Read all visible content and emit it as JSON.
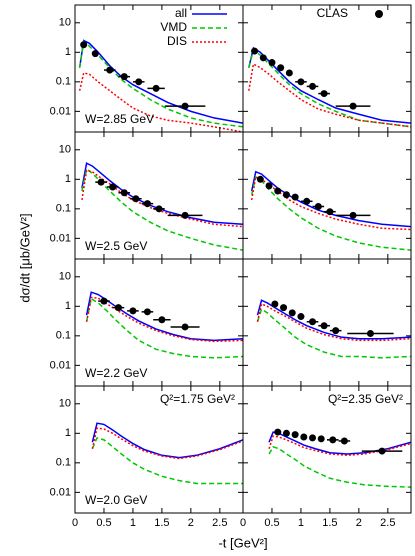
{
  "y_label": "dσ/dt [μb/GeV²]",
  "x_label": "-t [GeV²]",
  "chart_data": [
    {
      "type": "line",
      "annotations": [
        "W=2.85 GeV"
      ],
      "legend": "upper right",
      "xlim": [
        0,
        2.9
      ],
      "ylim": [
        0.002,
        40
      ],
      "log_y": true,
      "yticks": [
        0.01,
        0.1,
        1,
        10
      ],
      "x": [
        0.08,
        0.15,
        0.25,
        0.4,
        0.6,
        0.8,
        1.0,
        1.3,
        1.6,
        2.0,
        2.4,
        2.9
      ],
      "series": [
        {
          "name": "all",
          "color": "#0000ff",
          "style": "solid",
          "values": [
            0.3,
            2.5,
            2.0,
            1.0,
            0.35,
            0.15,
            0.08,
            0.04,
            0.02,
            0.01,
            0.006,
            0.004
          ]
        },
        {
          "name": "VMD",
          "color": "#00c800",
          "style": "dashed",
          "values": [
            0.3,
            2.3,
            1.6,
            0.8,
            0.3,
            0.12,
            0.06,
            0.025,
            0.012,
            0.006,
            0.004,
            0.003
          ]
        },
        {
          "name": "DIS",
          "color": "#ff0000",
          "style": "dotted",
          "values": [
            0.05,
            0.2,
            0.18,
            0.1,
            0.05,
            0.025,
            0.013,
            0.007,
            0.005,
            0.004,
            0.003,
            0.002
          ]
        },
        {
          "name": "CLAS",
          "color": "#000000",
          "style": "points",
          "x": [
            0.15,
            0.35,
            0.6,
            0.85,
            1.1,
            1.4,
            1.9
          ],
          "values": [
            1.8,
            0.9,
            0.25,
            0.15,
            0.1,
            0.06,
            0.015
          ],
          "xerr": [
            0.05,
            0.05,
            0.1,
            0.1,
            0.1,
            0.15,
            0.35
          ]
        }
      ]
    },
    {
      "type": "line",
      "annotations": [],
      "legend": "upper right",
      "xlim": [
        0,
        2.9
      ],
      "ylim": [
        0.002,
        40
      ],
      "log_y": true,
      "x": [
        0.1,
        0.18,
        0.3,
        0.45,
        0.6,
        0.8,
        1.0,
        1.3,
        1.6,
        2.0,
        2.4,
        2.9
      ],
      "series": [
        {
          "name": "all",
          "color": "#0000ff",
          "style": "solid",
          "values": [
            0.3,
            1.4,
            1.0,
            0.5,
            0.25,
            0.1,
            0.05,
            0.025,
            0.013,
            0.008,
            0.005,
            0.004
          ]
        },
        {
          "name": "VMD",
          "color": "#00c800",
          "style": "dashed",
          "values": [
            0.3,
            1.2,
            0.8,
            0.4,
            0.2,
            0.08,
            0.04,
            0.018,
            0.01,
            0.005,
            0.004,
            0.003
          ]
        },
        {
          "name": "DIS",
          "color": "#ff0000",
          "style": "dotted",
          "values": [
            0.05,
            0.4,
            0.3,
            0.18,
            0.1,
            0.05,
            0.025,
            0.012,
            0.008,
            0.005,
            0.004,
            0.003
          ]
        },
        {
          "name": "CLAS",
          "color": "#000000",
          "style": "points",
          "x": [
            0.2,
            0.35,
            0.5,
            0.65,
            0.8,
            1.0,
            1.2,
            1.4,
            1.9
          ],
          "values": [
            1.1,
            0.65,
            0.45,
            0.3,
            0.2,
            0.1,
            0.07,
            0.04,
            0.015
          ],
          "xerr": [
            0.05,
            0.05,
            0.05,
            0.05,
            0.05,
            0.1,
            0.1,
            0.1,
            0.3
          ]
        }
      ]
    },
    {
      "type": "line",
      "annotations": [
        "W=2.5 GeV"
      ],
      "xlim": [
        0,
        2.9
      ],
      "ylim": [
        0.002,
        40
      ],
      "log_y": true,
      "yticks": [
        0.01,
        0.1,
        1,
        10
      ],
      "x": [
        0.12,
        0.2,
        0.3,
        0.45,
        0.6,
        0.8,
        1.0,
        1.3,
        1.6,
        2.0,
        2.4,
        2.9
      ],
      "series": [
        {
          "name": "all",
          "color": "#0000ff",
          "style": "solid",
          "values": [
            0.5,
            3.5,
            2.8,
            1.6,
            0.9,
            0.45,
            0.25,
            0.13,
            0.08,
            0.05,
            0.035,
            0.03
          ]
        },
        {
          "name": "VMD",
          "color": "#00c800",
          "style": "dashed",
          "values": [
            0.4,
            2.2,
            1.6,
            0.8,
            0.4,
            0.17,
            0.08,
            0.035,
            0.018,
            0.01,
            0.006,
            0.004
          ]
        },
        {
          "name": "DIS",
          "color": "#ff0000",
          "style": "dotted",
          "values": [
            0.2,
            2.0,
            1.8,
            1.1,
            0.7,
            0.35,
            0.2,
            0.11,
            0.07,
            0.045,
            0.03,
            0.025
          ]
        },
        {
          "name": "CLAS",
          "color": "#000000",
          "style": "points",
          "x": [
            0.45,
            0.65,
            0.85,
            1.05,
            1.25,
            1.45,
            1.9
          ],
          "values": [
            0.8,
            0.55,
            0.35,
            0.22,
            0.15,
            0.1,
            0.06
          ],
          "xerr": [
            0.1,
            0.1,
            0.1,
            0.1,
            0.1,
            0.1,
            0.3
          ]
        }
      ]
    },
    {
      "type": "line",
      "annotations": [],
      "xlim": [
        0,
        2.9
      ],
      "ylim": [
        0.002,
        40
      ],
      "log_y": true,
      "x": [
        0.15,
        0.22,
        0.32,
        0.45,
        0.6,
        0.8,
        1.0,
        1.3,
        1.6,
        2.0,
        2.4,
        2.9
      ],
      "series": [
        {
          "name": "all",
          "color": "#0000ff",
          "style": "solid",
          "values": [
            0.4,
            1.8,
            1.5,
            0.9,
            0.5,
            0.28,
            0.17,
            0.09,
            0.06,
            0.04,
            0.03,
            0.025
          ]
        },
        {
          "name": "VMD",
          "color": "#00c800",
          "style": "dashed",
          "values": [
            0.3,
            1.2,
            0.9,
            0.45,
            0.22,
            0.1,
            0.05,
            0.022,
            0.012,
            0.007,
            0.005,
            0.004
          ]
        },
        {
          "name": "DIS",
          "color": "#ff0000",
          "style": "dotted",
          "values": [
            0.2,
            1.2,
            1.0,
            0.65,
            0.4,
            0.2,
            0.12,
            0.07,
            0.045,
            0.03,
            0.022,
            0.02
          ]
        },
        {
          "name": "CLAS",
          "color": "#000000",
          "style": "points",
          "x": [
            0.3,
            0.45,
            0.6,
            0.75,
            0.9,
            1.1,
            1.3,
            1.5,
            1.9
          ],
          "values": [
            1.0,
            0.6,
            0.4,
            0.3,
            0.25,
            0.18,
            0.12,
            0.08,
            0.06
          ],
          "xerr": [
            0.05,
            0.05,
            0.05,
            0.05,
            0.05,
            0.1,
            0.1,
            0.1,
            0.3
          ]
        }
      ]
    },
    {
      "type": "line",
      "annotations": [
        "W=2.2 GeV"
      ],
      "xlim": [
        0,
        2.9
      ],
      "ylim": [
        0.002,
        40
      ],
      "log_y": true,
      "yticks": [
        0.01,
        0.1,
        1,
        10
      ],
      "x": [
        0.2,
        0.28,
        0.4,
        0.55,
        0.7,
        0.9,
        1.1,
        1.4,
        1.7,
        2.0,
        2.4,
        2.9
      ],
      "series": [
        {
          "name": "all",
          "color": "#0000ff",
          "style": "solid",
          "values": [
            0.5,
            3.0,
            2.5,
            1.6,
            1.0,
            0.55,
            0.32,
            0.17,
            0.11,
            0.08,
            0.07,
            0.08
          ]
        },
        {
          "name": "VMD",
          "color": "#00c800",
          "style": "dashed",
          "values": [
            0.3,
            1.8,
            1.3,
            0.7,
            0.35,
            0.15,
            0.07,
            0.035,
            0.025,
            0.02,
            0.018,
            0.02
          ]
        },
        {
          "name": "DIS",
          "color": "#ff0000",
          "style": "dotted",
          "values": [
            0.3,
            2.0,
            1.9,
            1.2,
            0.8,
            0.45,
            0.27,
            0.15,
            0.1,
            0.075,
            0.065,
            0.07
          ]
        },
        {
          "name": "CLAS",
          "color": "#000000",
          "style": "points",
          "x": [
            0.5,
            0.75,
            1.0,
            1.25,
            1.5,
            1.9
          ],
          "values": [
            1.5,
            0.9,
            0.7,
            0.65,
            0.35,
            0.2
          ],
          "xerr": [
            0.1,
            0.1,
            0.1,
            0.1,
            0.15,
            0.25
          ]
        }
      ]
    },
    {
      "type": "line",
      "annotations": [],
      "xlim": [
        0,
        2.9
      ],
      "ylim": [
        0.002,
        40
      ],
      "log_y": true,
      "x": [
        0.25,
        0.32,
        0.42,
        0.55,
        0.7,
        0.9,
        1.1,
        1.4,
        1.7,
        2.0,
        2.4,
        2.9
      ],
      "series": [
        {
          "name": "all",
          "color": "#0000ff",
          "style": "solid",
          "values": [
            0.5,
            1.6,
            1.3,
            0.9,
            0.6,
            0.35,
            0.22,
            0.13,
            0.09,
            0.08,
            0.08,
            0.09
          ]
        },
        {
          "name": "VMD",
          "color": "#00c800",
          "style": "dashed",
          "values": [
            0.3,
            0.8,
            0.6,
            0.35,
            0.2,
            0.09,
            0.05,
            0.028,
            0.02,
            0.02,
            0.018,
            0.02
          ]
        },
        {
          "name": "DIS",
          "color": "#ff0000",
          "style": "dotted",
          "values": [
            0.3,
            1.2,
            1.0,
            0.7,
            0.5,
            0.3,
            0.18,
            0.11,
            0.08,
            0.07,
            0.07,
            0.08
          ]
        },
        {
          "name": "CLAS",
          "color": "#000000",
          "style": "points",
          "x": [
            0.55,
            0.7,
            0.85,
            1.0,
            1.2,
            1.4,
            1.6,
            2.2
          ],
          "values": [
            1.2,
            0.9,
            0.6,
            0.45,
            0.3,
            0.22,
            0.15,
            0.12
          ],
          "xerr": [
            0.05,
            0.05,
            0.05,
            0.05,
            0.1,
            0.1,
            0.1,
            0.4
          ]
        }
      ]
    },
    {
      "type": "line",
      "annotations": [
        "W=2.0 GeV",
        "Q²=1.75 GeV²"
      ],
      "xlim": [
        0,
        2.9
      ],
      "ylim": [
        0.002,
        40
      ],
      "log_y": true,
      "yticks": [
        0.01,
        0.1,
        1,
        10
      ],
      "xticks": [
        0,
        0.5,
        1,
        1.5,
        2,
        2.5
      ],
      "x": [
        0.3,
        0.38,
        0.5,
        0.65,
        0.8,
        1.0,
        1.2,
        1.5,
        1.8,
        2.1,
        2.5,
        2.9
      ],
      "series": [
        {
          "name": "all",
          "color": "#0000ff",
          "style": "solid",
          "values": [
            0.5,
            2.2,
            2.0,
            1.3,
            0.8,
            0.45,
            0.28,
            0.18,
            0.15,
            0.18,
            0.3,
            0.6
          ]
        },
        {
          "name": "VMD",
          "color": "#00c800",
          "style": "dashed",
          "values": [
            0.3,
            0.7,
            0.6,
            0.35,
            0.2,
            0.1,
            0.06,
            0.035,
            0.025,
            0.02,
            0.02,
            0.02
          ]
        },
        {
          "name": "DIS",
          "color": "#ff0000",
          "style": "dotted",
          "values": [
            0.3,
            1.5,
            1.4,
            1.0,
            0.65,
            0.38,
            0.25,
            0.17,
            0.14,
            0.17,
            0.28,
            0.55
          ]
        }
      ]
    },
    {
      "type": "line",
      "annotations": [
        "Q²=2.35 GeV²"
      ],
      "xlim": [
        0,
        2.9
      ],
      "ylim": [
        0.002,
        40
      ],
      "log_y": true,
      "xticks": [
        0,
        0.5,
        1,
        1.5,
        2,
        2.5
      ],
      "x": [
        0.45,
        0.52,
        0.62,
        0.75,
        0.9,
        1.05,
        1.25,
        1.5,
        1.8,
        2.1,
        2.5,
        2.9
      ],
      "series": [
        {
          "name": "all",
          "color": "#0000ff",
          "style": "solid",
          "values": [
            0.5,
            1.1,
            1.0,
            0.75,
            0.55,
            0.4,
            0.3,
            0.22,
            0.2,
            0.22,
            0.3,
            0.5
          ]
        },
        {
          "name": "VMD",
          "color": "#00c800",
          "style": "dashed",
          "values": [
            0.2,
            0.35,
            0.3,
            0.2,
            0.13,
            0.08,
            0.05,
            0.03,
            0.022,
            0.018,
            0.016,
            0.015
          ]
        },
        {
          "name": "DIS",
          "color": "#ff0000",
          "style": "dotted",
          "values": [
            0.3,
            0.8,
            0.75,
            0.6,
            0.45,
            0.33,
            0.26,
            0.2,
            0.18,
            0.2,
            0.28,
            0.45
          ]
        },
        {
          "name": "CLAS",
          "color": "#000000",
          "style": "points",
          "x": [
            0.6,
            0.75,
            0.9,
            1.05,
            1.2,
            1.35,
            1.55,
            1.75,
            2.4
          ],
          "values": [
            1.1,
            1.0,
            0.9,
            0.75,
            0.7,
            0.65,
            0.6,
            0.55,
            0.25
          ],
          "xerr": [
            0.05,
            0.05,
            0.05,
            0.05,
            0.05,
            0.05,
            0.1,
            0.1,
            0.35
          ]
        }
      ]
    }
  ]
}
